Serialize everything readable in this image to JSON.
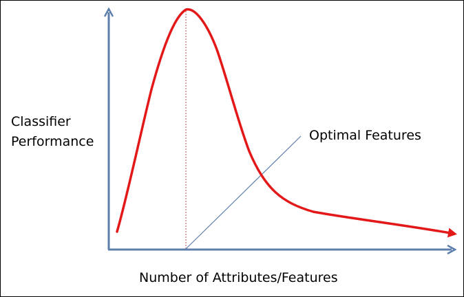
{
  "y_axis_label": [
    "Classifier",
    "Performance"
  ],
  "x_axis_label": "Number of Attributes/Features",
  "annotation": "Optimal Features",
  "colors": {
    "axis": "#5b7eab",
    "curve": "#e31818",
    "peak_marker": "#c0504d",
    "pointer": "#5b7eab",
    "text": "#000000",
    "border": "#000000"
  }
}
